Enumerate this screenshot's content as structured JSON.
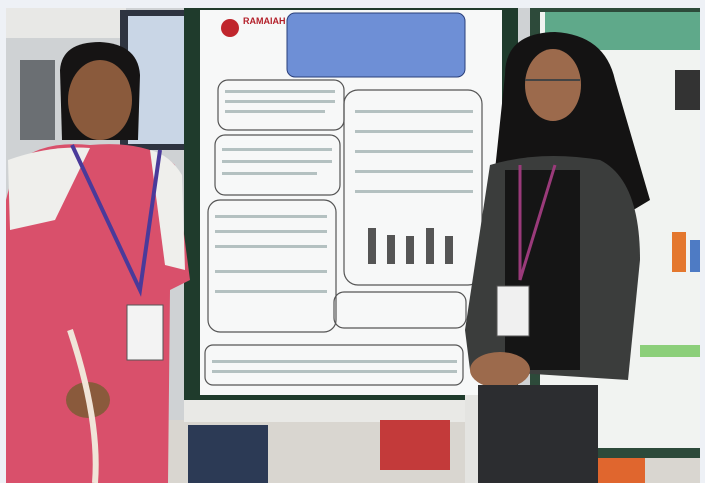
{
  "poster": {
    "logo_text": "RAMAIAH"
  }
}
